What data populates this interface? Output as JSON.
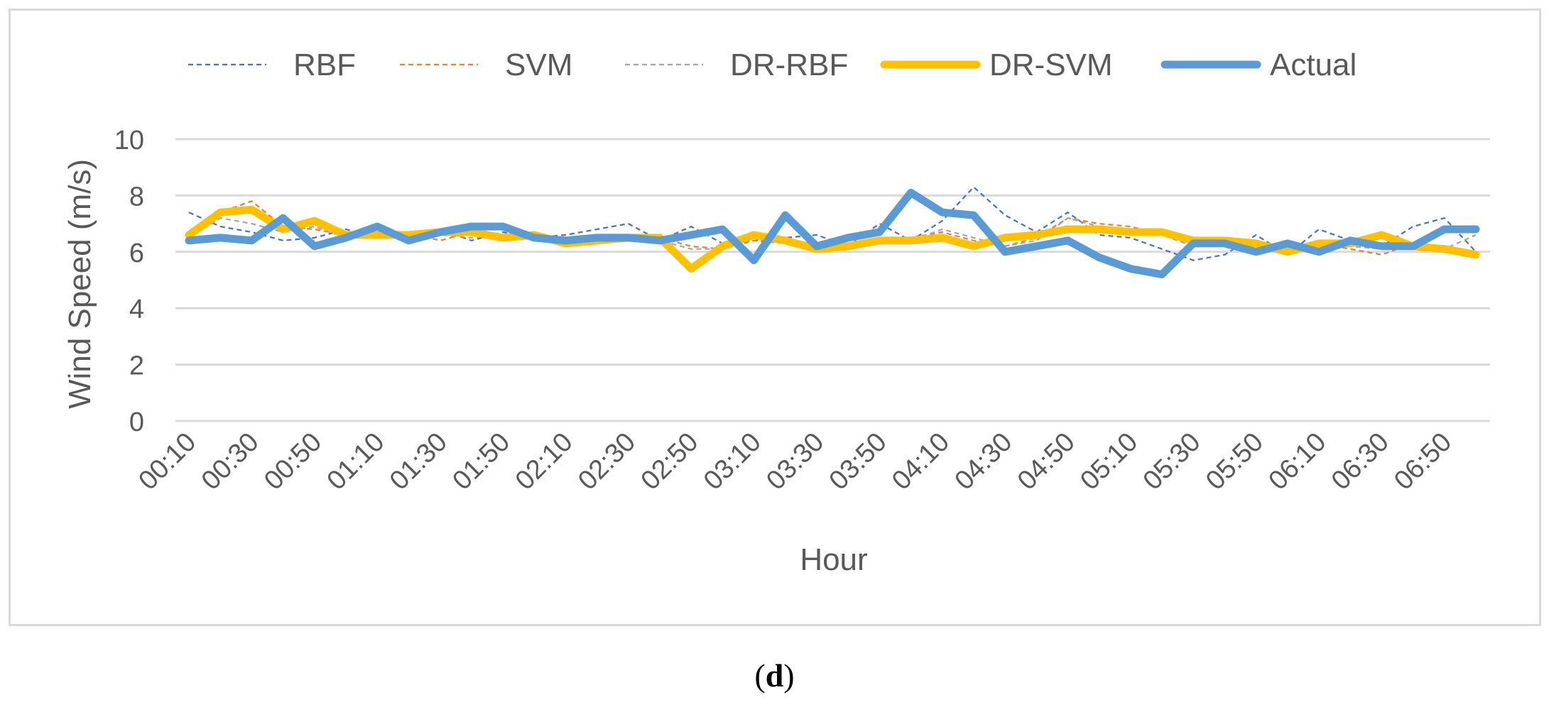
{
  "chart_data": {
    "type": "line",
    "title": "",
    "xlabel": "Hour",
    "ylabel": "Wind Speed (m/s)",
    "ylim": [
      0,
      10
    ],
    "yticks": [
      0,
      2,
      4,
      6,
      8,
      10
    ],
    "grid": true,
    "legend_position": "top",
    "x": [
      "00:10",
      "00:20",
      "00:30",
      "00:40",
      "00:50",
      "01:00",
      "01:10",
      "01:20",
      "01:30",
      "01:40",
      "01:50",
      "02:00",
      "02:10",
      "02:20",
      "02:30",
      "02:40",
      "02:50",
      "03:00",
      "03:10",
      "03:20",
      "03:30",
      "03:40",
      "03:50",
      "04:00",
      "04:10",
      "04:20",
      "04:30",
      "04:40",
      "04:50",
      "05:00",
      "05:10",
      "05:20",
      "05:30",
      "05:40",
      "05:50",
      "06:00",
      "06:10",
      "06:20",
      "06:30",
      "06:40",
      "06:50",
      "07:00"
    ],
    "tick_labels": [
      "00:10",
      "00:30",
      "00:50",
      "01:10",
      "01:30",
      "01:50",
      "02:10",
      "02:30",
      "02:50",
      "03:10",
      "03:30",
      "03:50",
      "04:10",
      "04:30",
      "04:50",
      "05:10",
      "05:30",
      "05:50",
      "06:10",
      "06:30",
      "06:50"
    ],
    "series": [
      {
        "name": "RBF",
        "color": "#4472c4",
        "style": "dashed-thin",
        "values": [
          7.4,
          6.9,
          6.7,
          6.4,
          6.5,
          6.8,
          6.5,
          6.6,
          6.8,
          6.4,
          6.7,
          6.5,
          6.6,
          6.8,
          7.0,
          6.4,
          6.9,
          6.3,
          6.4,
          6.5,
          6.6,
          6.2,
          7.0,
          6.4,
          7.1,
          8.3,
          7.3,
          6.7,
          7.4,
          6.6,
          6.5,
          6.1,
          5.7,
          5.9,
          6.6,
          5.9,
          6.8,
          6.4,
          6.2,
          6.9,
          7.2,
          6.0
        ]
      },
      {
        "name": "SVM",
        "color": "#ed7d31",
        "style": "dashed-thin",
        "values": [
          6.6,
          7.4,
          7.8,
          6.9,
          6.8,
          6.6,
          6.5,
          6.7,
          6.4,
          6.7,
          6.6,
          6.5,
          6.4,
          6.5,
          6.6,
          6.5,
          6.2,
          6.1,
          6.4,
          6.3,
          6.2,
          6.2,
          6.3,
          6.5,
          6.7,
          6.4,
          6.2,
          6.5,
          7.2,
          7.0,
          6.9,
          6.6,
          6.3,
          6.5,
          6.3,
          6.1,
          6.3,
          6.1,
          5.9,
          6.3,
          6.1,
          6.0
        ]
      },
      {
        "name": "DR-RBF",
        "color": "#a5a5a5",
        "style": "dashed-thin",
        "values": [
          6.5,
          7.2,
          7.0,
          6.7,
          6.9,
          6.5,
          6.7,
          6.6,
          6.6,
          6.5,
          6.6,
          6.6,
          6.5,
          6.5,
          6.6,
          6.4,
          6.1,
          6.1,
          6.5,
          6.4,
          6.3,
          6.1,
          6.4,
          6.4,
          6.8,
          6.5,
          6.2,
          6.4,
          7.2,
          6.9,
          6.7,
          6.6,
          6.2,
          6.5,
          6.3,
          6.1,
          6.3,
          6.2,
          6.1,
          6.2,
          6.1,
          6.6
        ]
      },
      {
        "name": "DR-SVM",
        "color": "#ffc000",
        "style": "solid-thick",
        "values": [
          6.6,
          7.4,
          7.5,
          6.8,
          7.1,
          6.6,
          6.6,
          6.6,
          6.7,
          6.7,
          6.5,
          6.6,
          6.3,
          6.4,
          6.5,
          6.5,
          5.4,
          6.2,
          6.6,
          6.4,
          6.1,
          6.2,
          6.4,
          6.4,
          6.5,
          6.2,
          6.5,
          6.6,
          6.8,
          6.8,
          6.7,
          6.7,
          6.4,
          6.4,
          6.3,
          6.0,
          6.3,
          6.3,
          6.6,
          6.2,
          6.1,
          5.9
        ]
      },
      {
        "name": "Actual",
        "color": "#5b9bd5",
        "style": "solid-thick",
        "values": [
          6.4,
          6.5,
          6.4,
          7.2,
          6.2,
          6.5,
          6.9,
          6.4,
          6.7,
          6.9,
          6.9,
          6.5,
          6.4,
          6.5,
          6.5,
          6.4,
          6.6,
          6.8,
          5.7,
          7.3,
          6.2,
          6.5,
          6.7,
          8.1,
          7.4,
          7.3,
          6.0,
          6.2,
          6.4,
          5.8,
          5.4,
          5.2,
          6.3,
          6.3,
          6.0,
          6.3,
          6.0,
          6.4,
          6.2,
          6.2,
          6.8,
          6.8
        ]
      }
    ]
  },
  "panel_label": "d"
}
